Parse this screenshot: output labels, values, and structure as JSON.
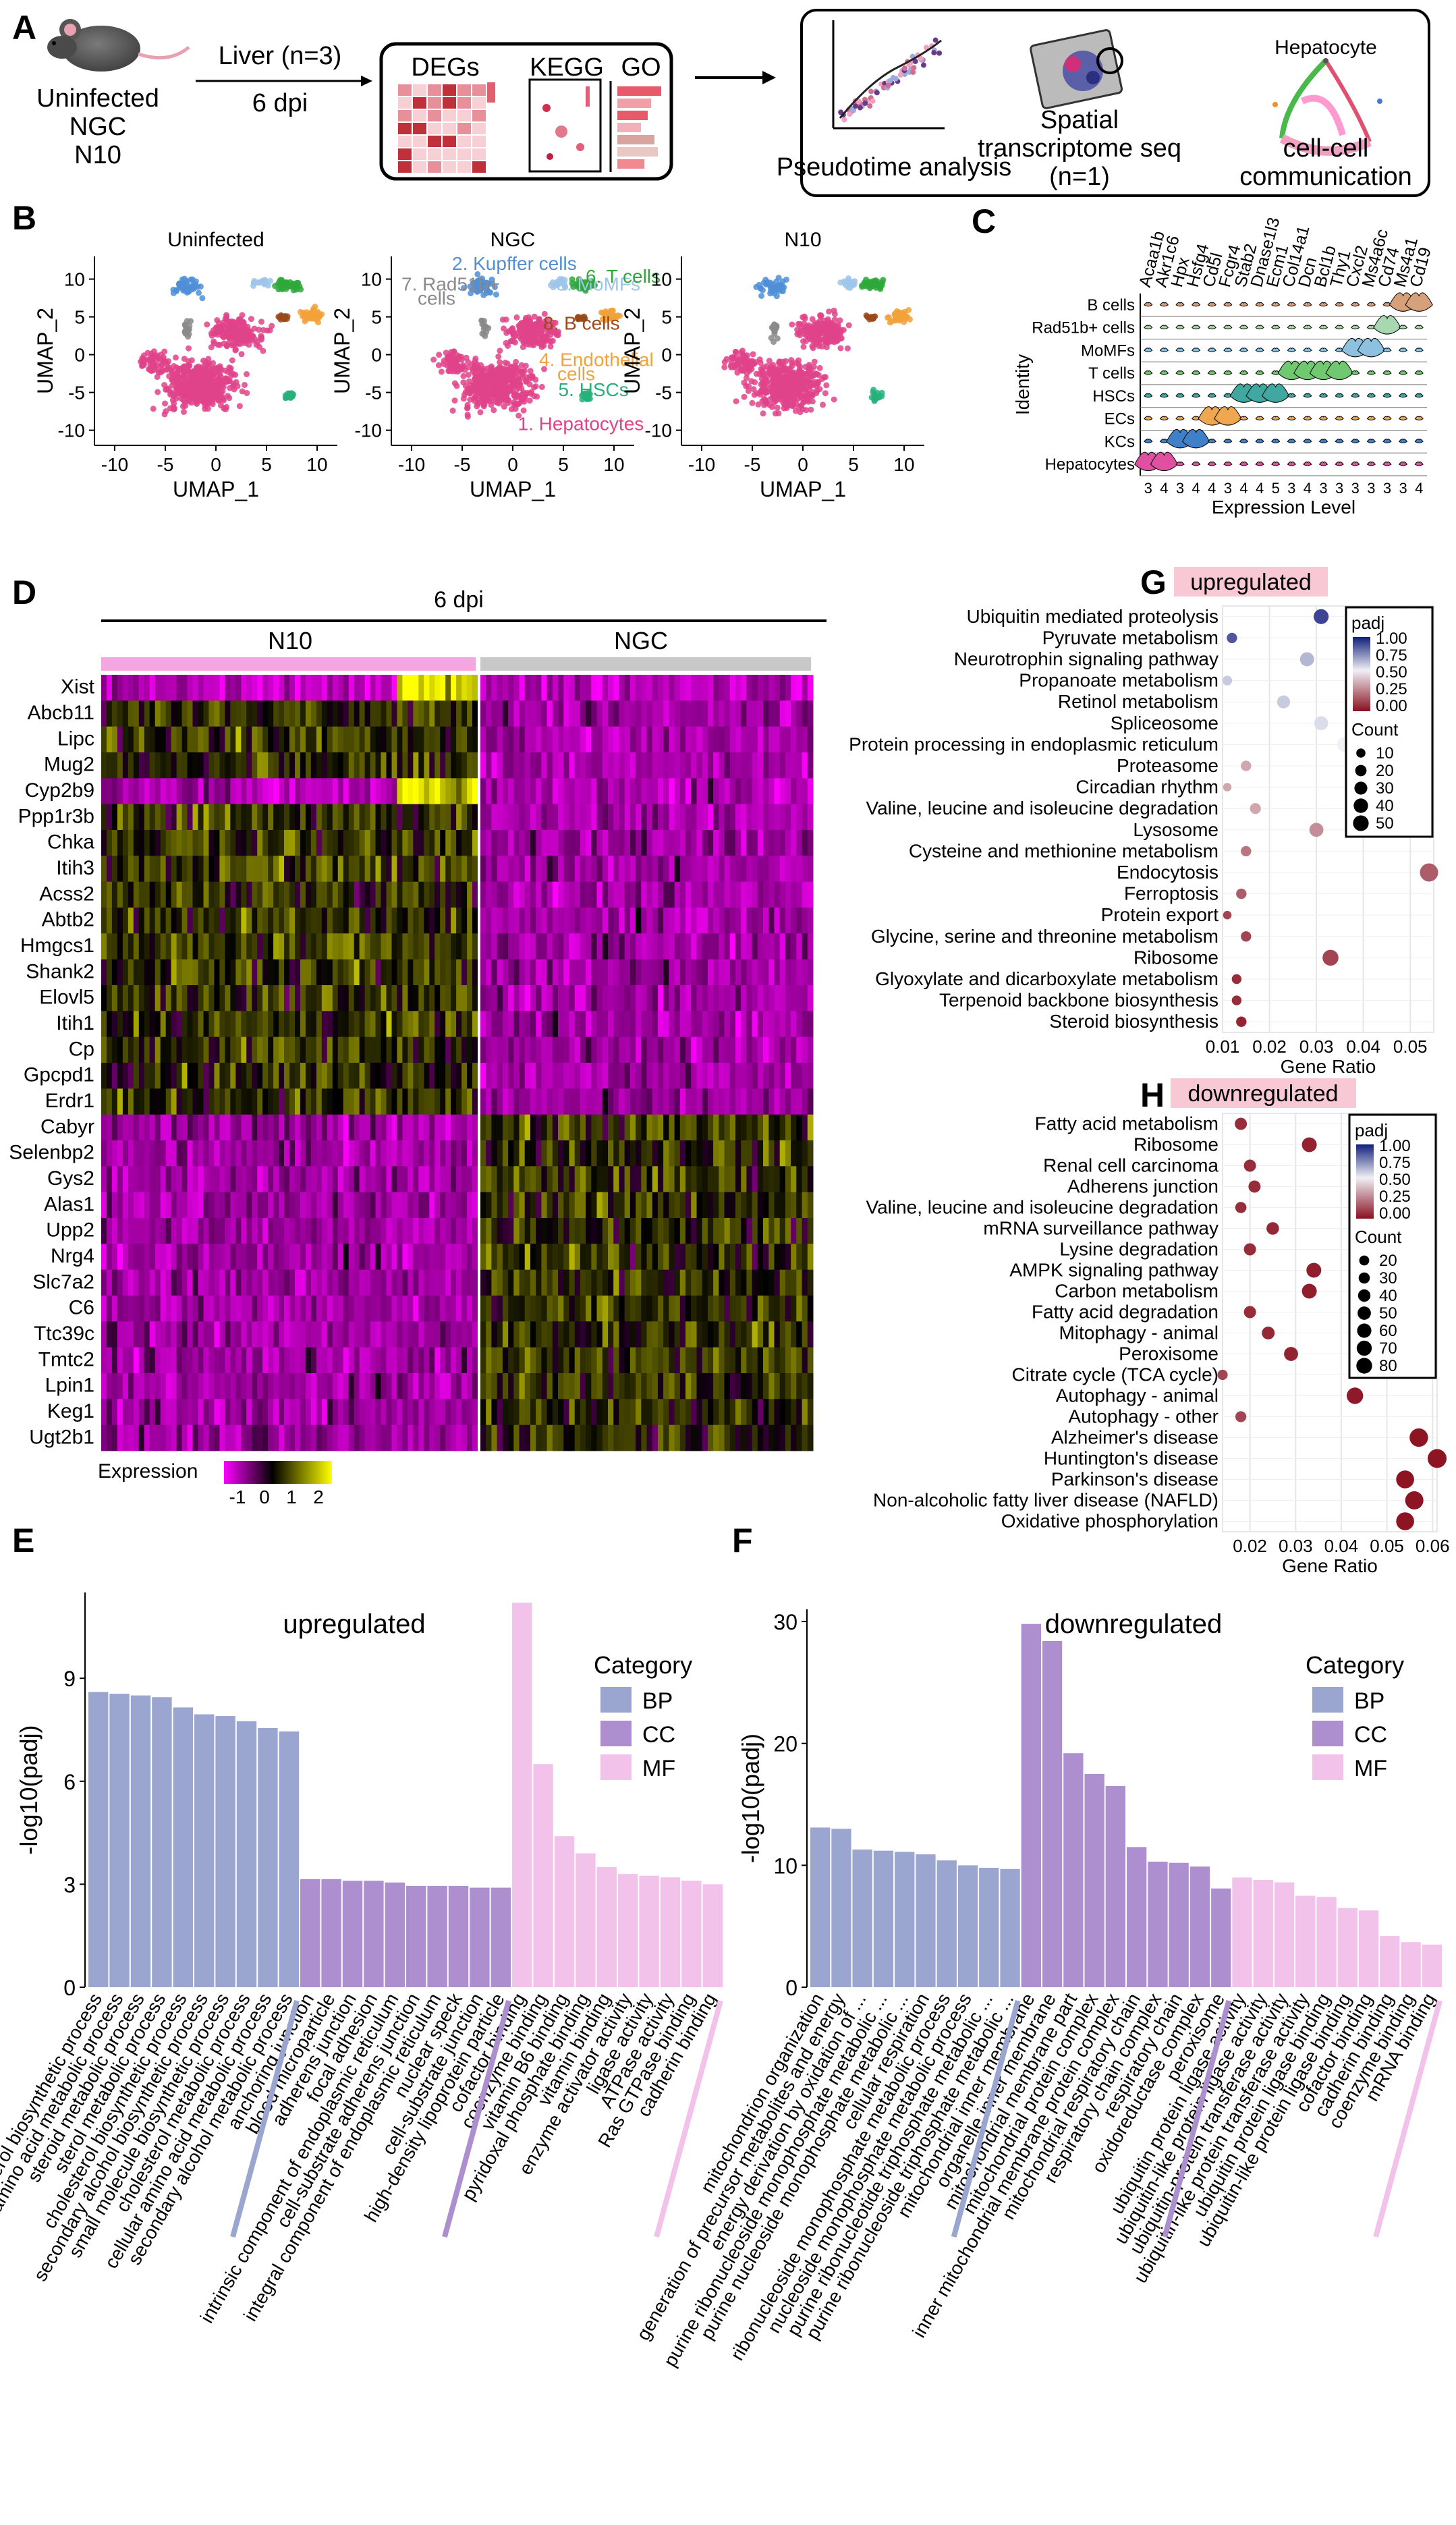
{
  "panelA": {
    "letter": "A",
    "mouse": "Uninfected",
    "ngc": "NGC",
    "n10": "N10",
    "liver": "Liver (n=3)",
    "dpi": "6 dpi",
    "degs": "DEGs",
    "kegg": "KEGG",
    "go": "GO",
    "pseudotime": "Pseudotime analysis",
    "spatial1": "Spatial",
    "spatial2": "transcriptome seq",
    "spatial3": "(n=1)",
    "hep": "Hepatocyte",
    "ccc1": "cell-cell",
    "ccc2": "communication"
  },
  "panelB": {
    "letter": "B",
    "titles": [
      "Uninfected",
      "NGC",
      "N10"
    ],
    "xlabel": "UMAP_1",
    "ylabel": "UMAP_2",
    "xticks": [
      "-10",
      "-5",
      "0",
      "5",
      "10"
    ],
    "yticks": [
      "10",
      "5",
      "0",
      "-5",
      "-10"
    ],
    "clusters": [
      {
        "label": "1. Hepatocytes",
        "color": "#e0438a"
      },
      {
        "label": "2. Kupffer cells",
        "color": "#4f8fd8"
      },
      {
        "label": "3. MoMFs",
        "color": "#9ec5ea"
      },
      {
        "label": "4. Endothelial cells",
        "color": "#f2a23a"
      },
      {
        "label": "5. HSCs",
        "color": "#27b07b"
      },
      {
        "label": "6. T cells",
        "color": "#2ea83a"
      },
      {
        "label": "7. Rad51b+ cells",
        "color": "#8a8a8a"
      },
      {
        "label": "8. B cells",
        "color": "#9a4a1a"
      }
    ]
  },
  "panelC": {
    "letter": "C",
    "genes": [
      "Acaa1b",
      "Akr1c6",
      "Hpx",
      "Hsfg4",
      "Cd5l",
      "Fcgr4",
      "Stab2",
      "Dnase1l3",
      "Ecm1",
      "Col14a1",
      "Dcn",
      "Bcl1b",
      "Thy1",
      "Cxcl2",
      "Ms4a6c",
      "Cd74",
      "Ms4a1",
      "Cd19"
    ],
    "identities": [
      "B cells",
      "Rad51b+ cells",
      "MoMFs",
      "T cells",
      "HSCs",
      "ECs",
      "KCs",
      "Hepatocytes"
    ],
    "ylabel": "Identity",
    "xlabel": "Expression Level"
  },
  "panelD": {
    "letter": "D",
    "time": "6 dpi",
    "groupA": "N10",
    "groupB": "NGC",
    "genes": [
      "Xist",
      "Abcb11",
      "Lipc",
      "Mug2",
      "Cyp2b9",
      "Ppp1r3b",
      "Chka",
      "Itih3",
      "Acss2",
      "Abtb2",
      "Hmgcs1",
      "Shank2",
      "Elovl5",
      "Itih1",
      "Cp",
      "Gpcpd1",
      "Erdr1",
      "Cabyr",
      "Selenbp2",
      "Gys2",
      "Alas1",
      "Upp2",
      "Nrg4",
      "Slc7a2",
      "C6",
      "Ttc39c",
      "Tmtc2",
      "Lpin1",
      "Keg1",
      "Ugt2b1"
    ],
    "legendTitle": "Expression",
    "legendTicks": [
      "-1",
      "0",
      "1",
      "2"
    ]
  },
  "panelG": {
    "letter": "G",
    "title": "upregulated",
    "xlabel": "Gene Ratio",
    "padjTitle": "padj",
    "countTitle": "Count",
    "padjTicks": [
      "1.00",
      "0.75",
      "0.50",
      "0.25",
      "0.00"
    ],
    "countTicks": [
      "10",
      "20",
      "30",
      "40",
      "50"
    ]
  },
  "panelH": {
    "letter": "H",
    "title": "downregulated",
    "xlabel": "Gene Ratio",
    "padjTitle": "padj",
    "countTitle": "Count",
    "padjTicks": [
      "1.00",
      "0.75",
      "0.50",
      "0.25",
      "0.00"
    ],
    "countTicks": [
      "20",
      "30",
      "40",
      "50",
      "60",
      "70",
      "80"
    ]
  },
  "panelE": {
    "letter": "E",
    "title": "upregulated",
    "ylabel": "-log10(padj)",
    "catTitle": "Category",
    "cats": [
      "BP",
      "CC",
      "MF"
    ]
  },
  "panelF": {
    "letter": "F",
    "title": "downregulated",
    "ylabel": "-log10(padj)",
    "catTitle": "Category",
    "cats": [
      "BP",
      "CC",
      "MF"
    ]
  },
  "colors": {
    "BP": "#9aa6d0",
    "CC": "#ad8fcf",
    "MF": "#f3c2ea"
  },
  "chart_data": [
    {
      "type": "scatter",
      "title": "upregulated",
      "xlabel": "Gene Ratio",
      "xlim": [
        0.01,
        0.055
      ],
      "xticks": [
        0.01,
        0.02,
        0.03,
        0.04,
        0.05
      ],
      "points": [
        {
          "term": "Ubiquitin mediated proteolysis",
          "ratio": 0.031,
          "padj": 0.9,
          "count": 30
        },
        {
          "term": "Pyruvate metabolism",
          "ratio": 0.012,
          "padj": 0.85,
          "count": 10
        },
        {
          "term": "Neurotrophin signaling pathway",
          "ratio": 0.028,
          "padj": 0.6,
          "count": 25
        },
        {
          "term": "Propanoate metabolism",
          "ratio": 0.011,
          "padj": 0.55,
          "count": 8
        },
        {
          "term": "Retinol metabolism",
          "ratio": 0.023,
          "padj": 0.55,
          "count": 20
        },
        {
          "term": "Spliceosome",
          "ratio": 0.031,
          "padj": 0.5,
          "count": 25
        },
        {
          "term": "Protein processing in endoplasmic reticulum",
          "ratio": 0.036,
          "padj": 0.45,
          "count": 30
        },
        {
          "term": "Proteasome",
          "ratio": 0.015,
          "padj": 0.3,
          "count": 10
        },
        {
          "term": "Circadian rhythm",
          "ratio": 0.011,
          "padj": 0.3,
          "count": 5
        },
        {
          "term": "Valine, leucine and isoleucine degradation",
          "ratio": 0.017,
          "padj": 0.3,
          "count": 12
        },
        {
          "term": "Lysosome",
          "ratio": 0.03,
          "padj": 0.25,
          "count": 25
        },
        {
          "term": "Cysteine and methionine metabolism",
          "ratio": 0.015,
          "padj": 0.2,
          "count": 10
        },
        {
          "term": "Endocytosis",
          "ratio": 0.054,
          "padj": 0.15,
          "count": 50
        },
        {
          "term": "Ferroptosis",
          "ratio": 0.014,
          "padj": 0.15,
          "count": 10
        },
        {
          "term": "Protein export",
          "ratio": 0.011,
          "padj": 0.1,
          "count": 5
        },
        {
          "term": "Glycine, serine and threonine metabolism",
          "ratio": 0.015,
          "padj": 0.1,
          "count": 10
        },
        {
          "term": "Ribosome",
          "ratio": 0.033,
          "padj": 0.1,
          "count": 35
        },
        {
          "term": "Glyoxylate and dicarboxylate metabolism",
          "ratio": 0.013,
          "padj": 0.05,
          "count": 8
        },
        {
          "term": "Terpenoid backbone biosynthesis",
          "ratio": 0.013,
          "padj": 0.05,
          "count": 8
        },
        {
          "term": "Steroid biosynthesis",
          "ratio": 0.014,
          "padj": 0.03,
          "count": 10
        }
      ]
    },
    {
      "type": "scatter",
      "title": "downregulated",
      "xlabel": "Gene Ratio",
      "xlim": [
        0.014,
        0.061
      ],
      "xticks": [
        0.02,
        0.03,
        0.04,
        0.05,
        0.06
      ],
      "points": [
        {
          "term": "Fatty acid metabolism",
          "ratio": 0.018,
          "padj": 0.05,
          "count": 25
        },
        {
          "term": "Ribosome",
          "ratio": 0.033,
          "padj": 0.03,
          "count": 45
        },
        {
          "term": "Renal cell carcinoma",
          "ratio": 0.02,
          "padj": 0.05,
          "count": 25
        },
        {
          "term": "Adherens junction",
          "ratio": 0.021,
          "padj": 0.05,
          "count": 25
        },
        {
          "term": "Valine, leucine and isoleucine degradation",
          "ratio": 0.018,
          "padj": 0.05,
          "count": 20
        },
        {
          "term": "mRNA surveillance pathway",
          "ratio": 0.025,
          "padj": 0.04,
          "count": 28
        },
        {
          "term": "Lysine degradation",
          "ratio": 0.02,
          "padj": 0.05,
          "count": 25
        },
        {
          "term": "AMPK signaling pathway",
          "ratio": 0.034,
          "padj": 0.02,
          "count": 45
        },
        {
          "term": "Carbon metabolism",
          "ratio": 0.033,
          "padj": 0.02,
          "count": 45
        },
        {
          "term": "Fatty acid degradation",
          "ratio": 0.02,
          "padj": 0.05,
          "count": 25
        },
        {
          "term": "Mitophagy - animal",
          "ratio": 0.024,
          "padj": 0.04,
          "count": 30
        },
        {
          "term": "Peroxisome",
          "ratio": 0.029,
          "padj": 0.03,
          "count": 38
        },
        {
          "term": "Citrate cycle (TCA cycle)",
          "ratio": 0.014,
          "padj": 0.1,
          "count": 15
        },
        {
          "term": "Autophagy - animal",
          "ratio": 0.043,
          "padj": 0.01,
          "count": 60
        },
        {
          "term": "Autophagy - other",
          "ratio": 0.018,
          "padj": 0.1,
          "count": 18
        },
        {
          "term": "Alzheimer's disease",
          "ratio": 0.057,
          "padj": 0.0,
          "count": 80
        },
        {
          "term": "Huntington's disease",
          "ratio": 0.061,
          "padj": 0.0,
          "count": 85
        },
        {
          "term": "Parkinson's disease",
          "ratio": 0.054,
          "padj": 0.0,
          "count": 75
        },
        {
          "term": "Non-alcoholic fatty liver disease (NAFLD)",
          "ratio": 0.056,
          "padj": 0.0,
          "count": 78
        },
        {
          "term": "Oxidative phosphorylation",
          "ratio": 0.054,
          "padj": 0.0,
          "count": 75
        }
      ]
    },
    {
      "type": "bar",
      "title": "upregulated",
      "ylabel": "-log10(padj)",
      "ylim": [
        0,
        11.5
      ],
      "yticks": [
        0,
        3,
        6,
        9
      ],
      "bars": [
        {
          "term": "sterol biosynthetic process",
          "cat": "BP",
          "value": 8.6
        },
        {
          "term": "alpha-amino acid metabolic process",
          "cat": "BP",
          "value": 8.55
        },
        {
          "term": "steroid metabolic process",
          "cat": "BP",
          "value": 8.5
        },
        {
          "term": "sterol metabolic process",
          "cat": "BP",
          "value": 8.45
        },
        {
          "term": "cholesterol biosynthetic process",
          "cat": "BP",
          "value": 8.15
        },
        {
          "term": "secondary alcohol biosynthetic process",
          "cat": "BP",
          "value": 7.95
        },
        {
          "term": "small molecule biosynthetic process",
          "cat": "BP",
          "value": 7.9
        },
        {
          "term": "cholesterol metabolic process",
          "cat": "BP",
          "value": 7.75
        },
        {
          "term": "cellular amino acid metabolic process",
          "cat": "BP",
          "value": 7.55
        },
        {
          "term": "secondary alcohol metabolic process",
          "cat": "BP",
          "value": 7.45
        },
        {
          "term": "anchoring junction",
          "cat": "CC",
          "value": 3.15
        },
        {
          "term": "blood microparticle",
          "cat": "CC",
          "value": 3.15
        },
        {
          "term": "adherens junction",
          "cat": "CC",
          "value": 3.1
        },
        {
          "term": "focal adhesion",
          "cat": "CC",
          "value": 3.1
        },
        {
          "term": "intrinsic component of endoplasmic reticulum",
          "cat": "CC",
          "value": 3.05
        },
        {
          "term": "cell-substrate adherens junction",
          "cat": "CC",
          "value": 2.95
        },
        {
          "term": "integral component of endoplasmic reticulum",
          "cat": "CC",
          "value": 2.95
        },
        {
          "term": "nuclear speck",
          "cat": "CC",
          "value": 2.95
        },
        {
          "term": "cell-substrate junction",
          "cat": "CC",
          "value": 2.9
        },
        {
          "term": "high-density lipoprotein particle",
          "cat": "CC",
          "value": 2.9
        },
        {
          "term": "cofactor binding",
          "cat": "MF",
          "value": 11.2
        },
        {
          "term": "coenzyme binding",
          "cat": "MF",
          "value": 6.5
        },
        {
          "term": "vitamin B6 binding",
          "cat": "MF",
          "value": 4.4
        },
        {
          "term": "pyridoxal phosphate binding",
          "cat": "MF",
          "value": 3.9
        },
        {
          "term": "vitamin binding",
          "cat": "MF",
          "value": 3.5
        },
        {
          "term": "enzyme activator activity",
          "cat": "MF",
          "value": 3.3
        },
        {
          "term": "ligase activity",
          "cat": "MF",
          "value": 3.25
        },
        {
          "term": "ATPase activity",
          "cat": "MF",
          "value": 3.2
        },
        {
          "term": "Ras GTPase binding",
          "cat": "MF",
          "value": 3.1
        },
        {
          "term": "cadherin binding",
          "cat": "MF",
          "value": 3.0
        }
      ]
    },
    {
      "type": "bar",
      "title": "downregulated",
      "ylabel": "-log10(padj)",
      "ylim": [
        0,
        31
      ],
      "yticks": [
        0,
        10,
        20,
        30
      ],
      "bars": [
        {
          "term": "mitochondrion organization",
          "cat": "BP",
          "value": 13.1
        },
        {
          "term": "generation of precursor metabolites and energy",
          "cat": "BP",
          "value": 13.0
        },
        {
          "term": "energy derivation by oxidation of ...",
          "cat": "BP",
          "value": 11.3
        },
        {
          "term": "purine ribonucleoside monophosphate metabolic ...",
          "cat": "BP",
          "value": 11.2
        },
        {
          "term": "purine nucleoside monophosphate metabolic ...",
          "cat": "BP",
          "value": 11.1
        },
        {
          "term": "cellular respiration",
          "cat": "BP",
          "value": 10.9
        },
        {
          "term": "ribonucleoside monophosphate metabolic process",
          "cat": "BP",
          "value": 10.4
        },
        {
          "term": "nucleoside monophosphate metabolic process",
          "cat": "BP",
          "value": 10.0
        },
        {
          "term": "purine ribonucleotide triphosphate metabolic ...",
          "cat": "BP",
          "value": 9.8
        },
        {
          "term": "purine ribonucleoside triphosphate metabolic ...",
          "cat": "BP",
          "value": 9.7
        },
        {
          "term": "mitochondrial inner membrane",
          "cat": "CC",
          "value": 29.8
        },
        {
          "term": "organelle inner membrane",
          "cat": "CC",
          "value": 28.4
        },
        {
          "term": "mitochondrial membrane part",
          "cat": "CC",
          "value": 19.2
        },
        {
          "term": "mitochondrial protein complex",
          "cat": "CC",
          "value": 17.5
        },
        {
          "term": "inner mitochondrial membrane protein complex",
          "cat": "CC",
          "value": 16.5
        },
        {
          "term": "mitochondrial respiratory chain",
          "cat": "CC",
          "value": 11.5
        },
        {
          "term": "respiratory chain complex",
          "cat": "CC",
          "value": 10.3
        },
        {
          "term": "respiratory chain",
          "cat": "CC",
          "value": 10.2
        },
        {
          "term": "oxidoreductase complex",
          "cat": "CC",
          "value": 9.9
        },
        {
          "term": "peroxisome",
          "cat": "CC",
          "value": 8.1
        },
        {
          "term": "ubiquitin protein ligase activity",
          "cat": "MF",
          "value": 9.0
        },
        {
          "term": "ubiquitin-like protein ligase activity",
          "cat": "MF",
          "value": 8.8
        },
        {
          "term": "ubiquitin-protein transferase activity",
          "cat": "MF",
          "value": 8.6
        },
        {
          "term": "ubiquitin-like protein transferase activity",
          "cat": "MF",
          "value": 7.5
        },
        {
          "term": "ubiquitin protein ligase binding",
          "cat": "MF",
          "value": 7.4
        },
        {
          "term": "ubiquitin-like protein ligase binding",
          "cat": "MF",
          "value": 6.5
        },
        {
          "term": "cofactor binding",
          "cat": "MF",
          "value": 6.3
        },
        {
          "term": "cadherin binding",
          "cat": "MF",
          "value": 4.2
        },
        {
          "term": "coenzyme binding",
          "cat": "MF",
          "value": 3.7
        },
        {
          "term": "mRNA binding",
          "cat": "MF",
          "value": 3.5
        }
      ]
    }
  ]
}
